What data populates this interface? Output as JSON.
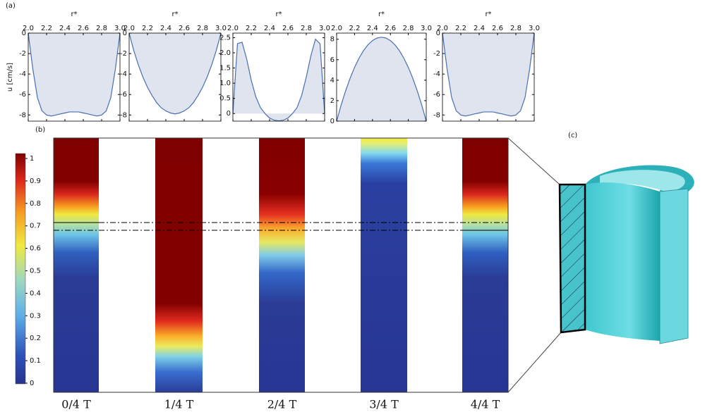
{
  "chart_data": [
    {
      "type": "area",
      "xlabel": "r*",
      "ylabel": "u [cm/s]",
      "color": "#4a6fb0",
      "fill": "#dfe4ef",
      "x": [
        2.0,
        2.05,
        2.1,
        2.15,
        2.2,
        2.25,
        2.3,
        2.35,
        2.4,
        2.45,
        2.5,
        2.55,
        2.6,
        2.65,
        2.7,
        2.75,
        2.8,
        2.85,
        2.9,
        2.95,
        3.0
      ],
      "values": [
        0,
        -3.5,
        -6.3,
        -7.6,
        -8.0,
        -8.1,
        -8.0,
        -7.9,
        -7.8,
        -7.7,
        -7.7,
        -7.7,
        -7.8,
        -7.9,
        -8.0,
        -8.1,
        -8.0,
        -7.6,
        -6.3,
        -3.5,
        0
      ],
      "xlim": [
        2.0,
        3.0
      ],
      "xticks": [
        {
          "value": 2.0,
          "label": "2.0"
        },
        2.2,
        2.4,
        2.6,
        2.8,
        {
          "value": 3.0,
          "label": "3.0"
        }
      ],
      "ylim": [
        -8.6,
        0
      ],
      "yticks": [
        0,
        -2,
        -4,
        -6,
        -8
      ]
    },
    {
      "type": "area",
      "xlabel": "r*",
      "color": "#4a6fb0",
      "fill": "#dfe4ef",
      "x": [
        2.0,
        2.05,
        2.1,
        2.15,
        2.2,
        2.25,
        2.3,
        2.35,
        2.4,
        2.45,
        2.5,
        2.55,
        2.6,
        2.65,
        2.7,
        2.75,
        2.8,
        2.85,
        2.9,
        2.95,
        3.0
      ],
      "values": [
        0,
        -1.7,
        -3.1,
        -4.3,
        -5.3,
        -6.1,
        -6.8,
        -7.3,
        -7.6,
        -7.8,
        -7.9,
        -7.8,
        -7.6,
        -7.3,
        -6.8,
        -6.1,
        -5.3,
        -4.3,
        -3.1,
        -1.7,
        0
      ],
      "xlim": [
        2.0,
        3.0
      ],
      "xticks": [
        {
          "value": 2.0,
          "label": "2.0"
        },
        2.2,
        2.4,
        2.6,
        2.8,
        {
          "value": 3.0,
          "label": "3.0"
        }
      ],
      "ylim": [
        -8.6,
        0
      ],
      "yticks": [
        0,
        -2,
        -4,
        -6,
        -8
      ]
    },
    {
      "type": "area",
      "xlabel": "r*",
      "color": "#4a6fb0",
      "fill": "#dfe4ef",
      "x": [
        2.0,
        2.05,
        2.1,
        2.15,
        2.2,
        2.25,
        2.3,
        2.35,
        2.4,
        2.45,
        2.5,
        2.55,
        2.6,
        2.65,
        2.7,
        2.75,
        2.8,
        2.85,
        2.9,
        2.95,
        3.0
      ],
      "values": [
        0,
        2.3,
        2.35,
        1.8,
        1.1,
        0.55,
        0.2,
        0,
        -0.15,
        -0.22,
        -0.24,
        -0.22,
        -0.15,
        0,
        0.2,
        0.6,
        1.2,
        1.9,
        2.45,
        2.3,
        0
      ],
      "xlim": [
        2.0,
        3.0
      ],
      "xticks": [
        {
          "value": 2.0,
          "label": "2.0"
        },
        2.2,
        2.4,
        2.6,
        2.8,
        {
          "value": 3.0,
          "label": "3.0"
        }
      ],
      "ylim": [
        -0.25,
        2.65
      ],
      "yticks": [
        0,
        0.5,
        {
          "value": 1.0,
          "label": "1.0"
        },
        1.5,
        {
          "value": 2.0,
          "label": "2.0"
        },
        2.5
      ]
    },
    {
      "type": "area",
      "xlabel": "r*",
      "color": "#4a6fb0",
      "fill": "#dfe4ef",
      "x": [
        2.0,
        2.05,
        2.1,
        2.15,
        2.2,
        2.25,
        2.3,
        2.35,
        2.4,
        2.45,
        2.5,
        2.55,
        2.6,
        2.65,
        2.7,
        2.75,
        2.8,
        2.85,
        2.9,
        2.95,
        3.0
      ],
      "values": [
        0,
        1.56,
        2.95,
        4.18,
        5.25,
        6.15,
        6.89,
        7.46,
        7.87,
        8.12,
        8.2,
        8.12,
        7.87,
        7.46,
        6.89,
        6.15,
        5.25,
        4.18,
        2.95,
        1.56,
        0
      ],
      "xlim": [
        2.0,
        3.0
      ],
      "xticks": [
        {
          "value": 2.0,
          "label": "2.0"
        },
        2.2,
        2.4,
        2.6,
        2.8,
        {
          "value": 3.0,
          "label": "3.0"
        }
      ],
      "ylim": [
        0,
        8.6
      ],
      "yticks": [
        0,
        2,
        4,
        6,
        8
      ]
    },
    {
      "type": "area",
      "xlabel": "r*",
      "color": "#4a6fb0",
      "fill": "#dfe4ef",
      "x": [
        2.0,
        2.05,
        2.1,
        2.15,
        2.2,
        2.25,
        2.3,
        2.35,
        2.4,
        2.45,
        2.5,
        2.55,
        2.6,
        2.65,
        2.7,
        2.75,
        2.8,
        2.85,
        2.9,
        2.95,
        3.0
      ],
      "values": [
        0,
        -3.5,
        -6.3,
        -7.6,
        -8.0,
        -8.1,
        -8.0,
        -7.9,
        -7.8,
        -7.7,
        -7.7,
        -7.7,
        -7.8,
        -7.9,
        -8.0,
        -8.1,
        -8.0,
        -7.6,
        -6.3,
        -3.5,
        0
      ],
      "xlim": [
        2.0,
        3.0
      ],
      "xticks": [
        {
          "value": 2.0,
          "label": "2.0"
        },
        2.2,
        2.4,
        2.6,
        2.8,
        {
          "value": 3.0,
          "label": "3.0"
        }
      ],
      "ylim": [
        -8.6,
        0
      ],
      "yticks": [
        0,
        -2,
        -4,
        -6,
        -8
      ]
    }
  ],
  "figure": {
    "panel_labels": [
      "(a)",
      "(b)",
      "(c)"
    ],
    "colorbar": {
      "lim": [
        0,
        1
      ],
      "ticks": [
        0,
        0.1,
        0.2,
        0.3,
        0.4,
        0.5,
        0.6,
        0.7,
        0.8,
        0.9,
        1
      ]
    },
    "snapshot_labels": [
      "0/4 T",
      "1/4 T",
      "2/4 T",
      "3/4 T",
      "4/4 T"
    ]
  }
}
